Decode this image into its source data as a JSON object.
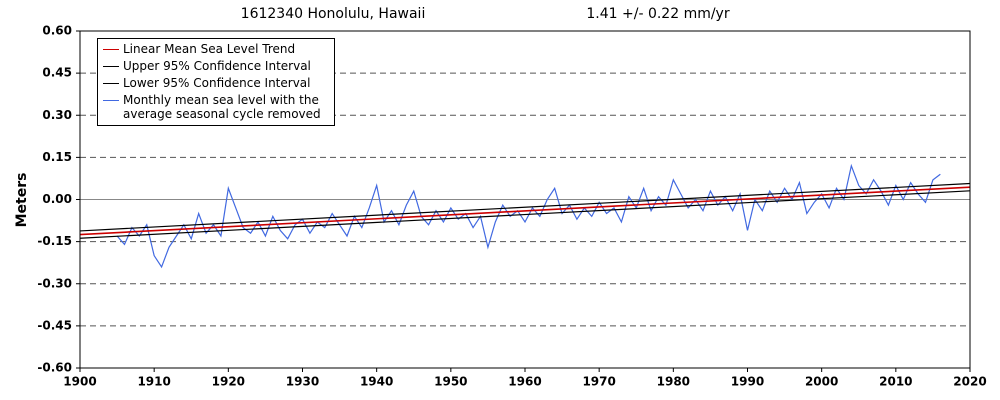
{
  "chart_data": {
    "type": "line",
    "title": "1612340 Honolulu, Hawaii",
    "subtitle": "1.41 +/-  0.22 mm/yr",
    "y_label": "Meters",
    "xlim": [
      1900,
      2020
    ],
    "xticks": [
      1900,
      1910,
      1920,
      1930,
      1940,
      1950,
      1960,
      1970,
      1980,
      1990,
      2000,
      2010,
      2020
    ],
    "ylim": [
      -0.6,
      0.6
    ],
    "yticks": [
      {
        "value": 0.6,
        "label": "0.60"
      },
      {
        "value": 0.45,
        "label": "0.45"
      },
      {
        "value": 0.3,
        "label": "0.30"
      },
      {
        "value": 0.15,
        "label": "0.15"
      },
      {
        "value": 0,
        "label": "0.00"
      },
      {
        "value": -0.15,
        "label": "-0.15"
      },
      {
        "value": -0.3,
        "label": "-0.30"
      },
      {
        "value": -0.45,
        "label": "-0.45"
      },
      {
        "value": -0.6,
        "label": "-0.60"
      }
    ],
    "grid": true,
    "legend": "upper left",
    "series": [
      {
        "name": "Linear Mean Sea Level Trend",
        "color": "#cc0000",
        "x": [
          1900,
          2020
        ],
        "values": [
          -0.125,
          0.044
        ]
      },
      {
        "name": "Upper 95% Confidence Interval",
        "color": "#000000",
        "x": [
          1900,
          2020
        ],
        "values": [
          -0.112,
          0.057
        ]
      },
      {
        "name": "Lower 95% Confidence Interval",
        "color": "#000000",
        "x": [
          1900,
          2020
        ],
        "values": [
          -0.138,
          0.031
        ]
      },
      {
        "name": "Monthly mean sea level with the\n average seasonal cycle removed",
        "color": "#4169e1",
        "x": [
          1905,
          1906,
          1907,
          1908,
          1909,
          1910,
          1911,
          1912,
          1913,
          1914,
          1915,
          1916,
          1917,
          1918,
          1919,
          1920,
          1921,
          1922,
          1923,
          1924,
          1925,
          1926,
          1927,
          1928,
          1929,
          1930,
          1931,
          1932,
          1933,
          1934,
          1935,
          1936,
          1937,
          1938,
          1939,
          1940,
          1941,
          1942,
          1943,
          1944,
          1945,
          1946,
          1947,
          1948,
          1949,
          1950,
          1951,
          1952,
          1953,
          1954,
          1955,
          1956,
          1957,
          1958,
          1959,
          1960,
          1961,
          1962,
          1963,
          1964,
          1965,
          1966,
          1967,
          1968,
          1969,
          1970,
          1971,
          1972,
          1973,
          1974,
          1975,
          1976,
          1977,
          1978,
          1979,
          1980,
          1981,
          1982,
          1983,
          1984,
          1985,
          1986,
          1987,
          1988,
          1989,
          1990,
          1991,
          1992,
          1993,
          1994,
          1995,
          1996,
          1997,
          1998,
          1999,
          2000,
          2001,
          2002,
          2003,
          2004,
          2005,
          2006,
          2007,
          2008,
          2009,
          2010,
          2011,
          2012,
          2013,
          2014,
          2015,
          2016
        ],
        "values": [
          -0.13,
          -0.16,
          -0.1,
          -0.13,
          -0.09,
          -0.2,
          -0.24,
          -0.17,
          -0.13,
          -0.09,
          -0.14,
          -0.05,
          -0.12,
          -0.09,
          -0.13,
          0.04,
          -0.03,
          -0.1,
          -0.12,
          -0.08,
          -0.13,
          -0.06,
          -0.11,
          -0.14,
          -0.09,
          -0.07,
          -0.12,
          -0.08,
          -0.1,
          -0.05,
          -0.09,
          -0.13,
          -0.06,
          -0.1,
          -0.03,
          0.05,
          -0.08,
          -0.04,
          -0.09,
          -0.02,
          0.03,
          -0.06,
          -0.09,
          -0.04,
          -0.08,
          -0.03,
          -0.07,
          -0.05,
          -0.1,
          -0.06,
          -0.17,
          -0.08,
          -0.02,
          -0.06,
          -0.04,
          -0.08,
          -0.03,
          -0.06,
          0.0,
          0.04,
          -0.05,
          -0.02,
          -0.07,
          -0.03,
          -0.06,
          -0.01,
          -0.05,
          -0.03,
          -0.08,
          0.01,
          -0.03,
          0.04,
          -0.04,
          0.01,
          -0.02,
          0.07,
          0.02,
          -0.03,
          0.0,
          -0.04,
          0.03,
          -0.02,
          0.01,
          -0.04,
          0.02,
          -0.11,
          0.0,
          -0.04,
          0.03,
          -0.01,
          0.04,
          0.0,
          0.06,
          -0.05,
          -0.01,
          0.02,
          -0.03,
          0.04,
          0.0,
          0.12,
          0.05,
          0.02,
          0.07,
          0.03,
          -0.02,
          0.05,
          0.0,
          0.06,
          0.02,
          -0.01,
          0.07,
          0.09
        ]
      }
    ]
  }
}
